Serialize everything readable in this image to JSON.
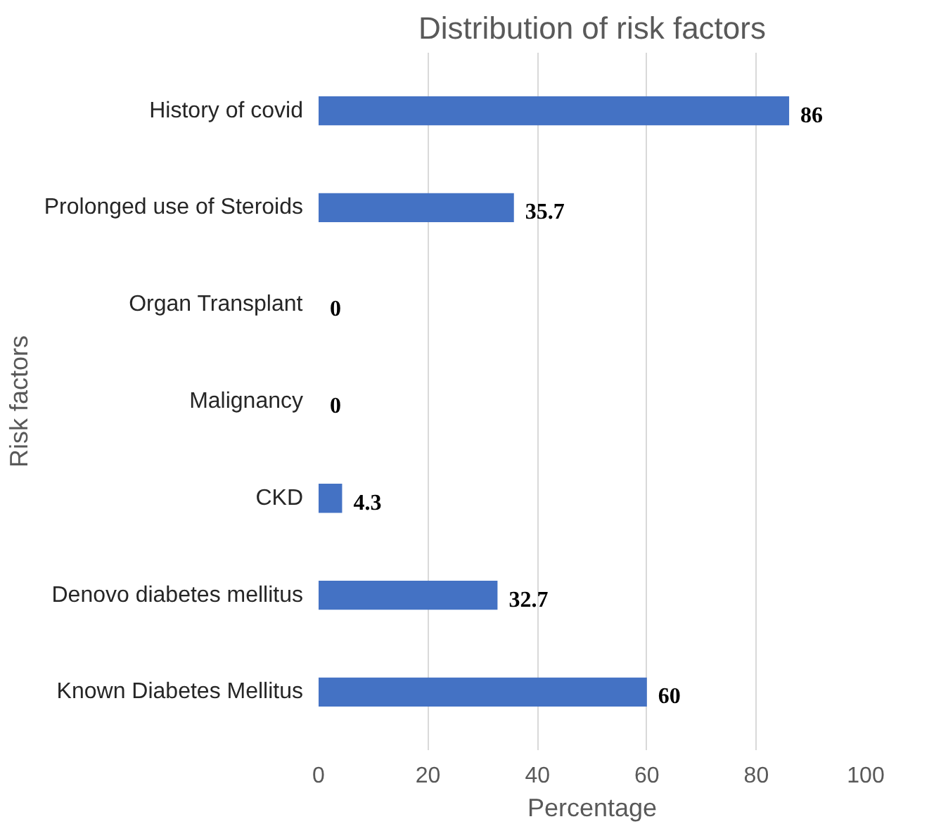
{
  "chart_data": {
    "type": "bar",
    "orientation": "horizontal",
    "title": "Distribution of risk factors",
    "xlabel": "Percentage",
    "ylabel": "Risk factors",
    "categories": [
      "History of covid",
      "Prolonged use of Steroids",
      "Organ Transplant",
      "Malignancy",
      "CKD",
      "Denovo diabetes mellitus",
      "Known Diabetes Mellitus"
    ],
    "values": [
      86,
      35.7,
      0,
      0,
      4.3,
      32.7,
      60
    ],
    "color": "#4472c4",
    "xlim": [
      0,
      100
    ],
    "xticks": [
      0,
      20,
      40,
      60,
      80,
      100
    ],
    "grid": "x",
    "data_labels": true
  }
}
